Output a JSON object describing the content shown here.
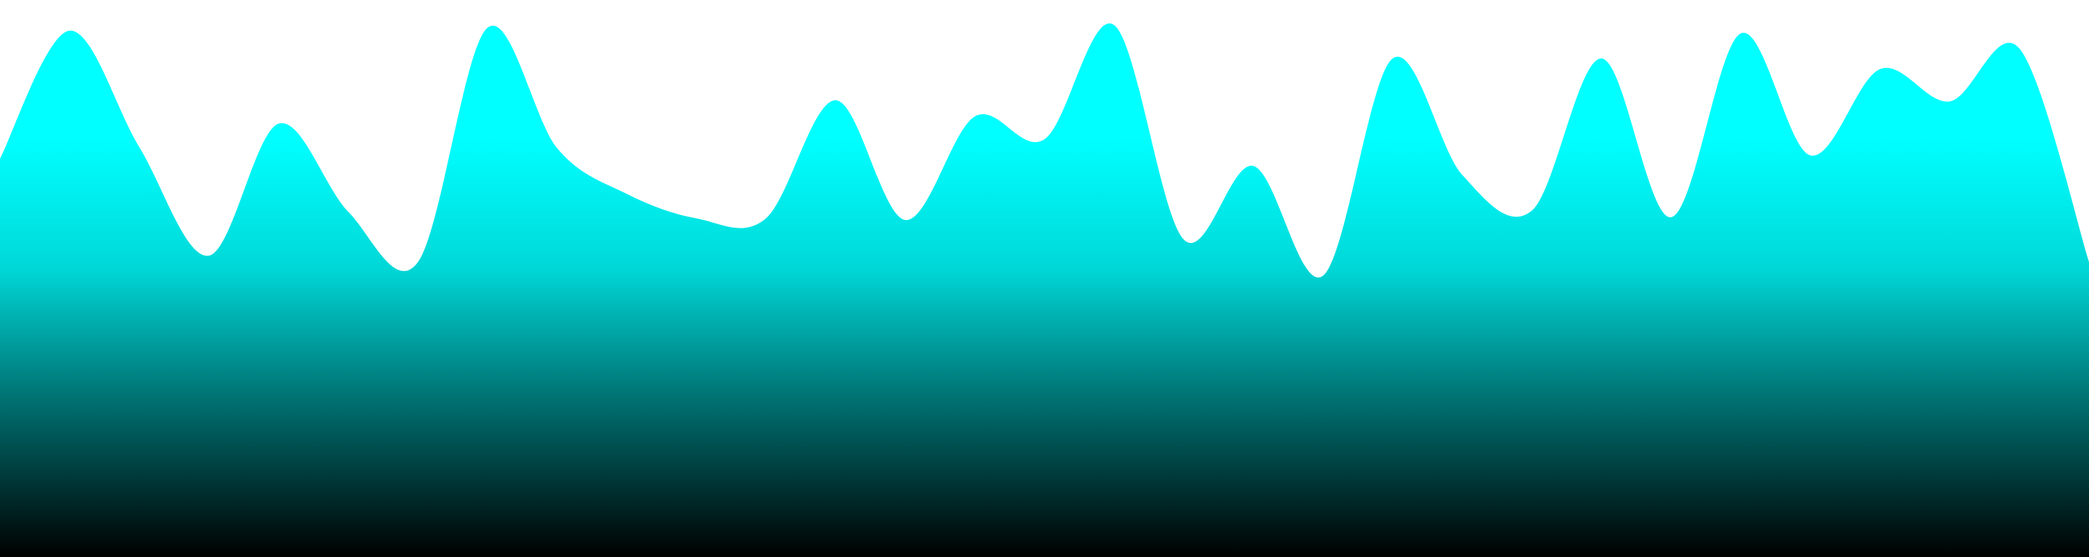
{
  "colors": {
    "background": "#ffffff",
    "wave_top": "#00ffff",
    "wave_bottom": "#000000"
  },
  "waveform": {
    "levels": [
      0.715,
      0.945,
      0.736,
      0.541,
      0.778,
      0.62,
      0.529,
      0.95,
      0.734,
      0.652,
      0.608,
      0.608,
      0.82,
      0.605,
      0.791,
      0.75,
      0.955,
      0.57,
      0.702,
      0.505,
      0.895,
      0.686,
      0.622,
      0.895,
      0.61,
      0.94,
      0.721,
      0.876,
      0.818,
      0.913,
      0.53
    ]
  }
}
